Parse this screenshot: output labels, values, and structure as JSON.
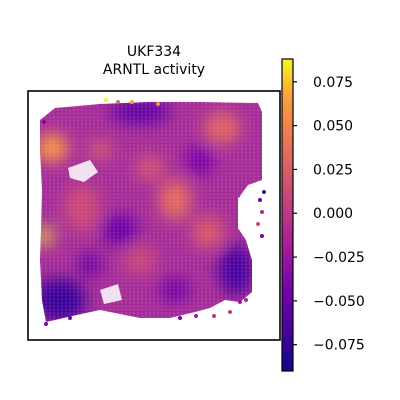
{
  "chart_data": {
    "type": "heatmap",
    "title_lines": [
      "UKF334",
      "ARNTL activity"
    ],
    "xlabel": "",
    "ylabel": "",
    "colormap": "plasma",
    "colorbar": {
      "range": [
        -0.09,
        0.088
      ],
      "ticks": [
        0.075,
        0.05,
        0.025,
        0.0,
        -0.025,
        -0.05,
        -0.075
      ],
      "tick_labels": [
        "0.075",
        "0.050",
        "0.025",
        "0.000",
        "−0.025",
        "−0.050",
        "−0.075"
      ]
    },
    "grid": false,
    "legend": "none",
    "spots": {
      "layout": "hexagonal",
      "typical_value": 0.0,
      "max_value": 0.088,
      "min_value": -0.09
    },
    "high_activity_regions": [
      "upper-left corner",
      "center",
      "upper-right"
    ],
    "low_activity_regions": [
      "lower-left corner",
      "lower-right edge",
      "top-middle edge"
    ]
  },
  "colors": {
    "axis": "#000000",
    "background": "#ffffff"
  }
}
